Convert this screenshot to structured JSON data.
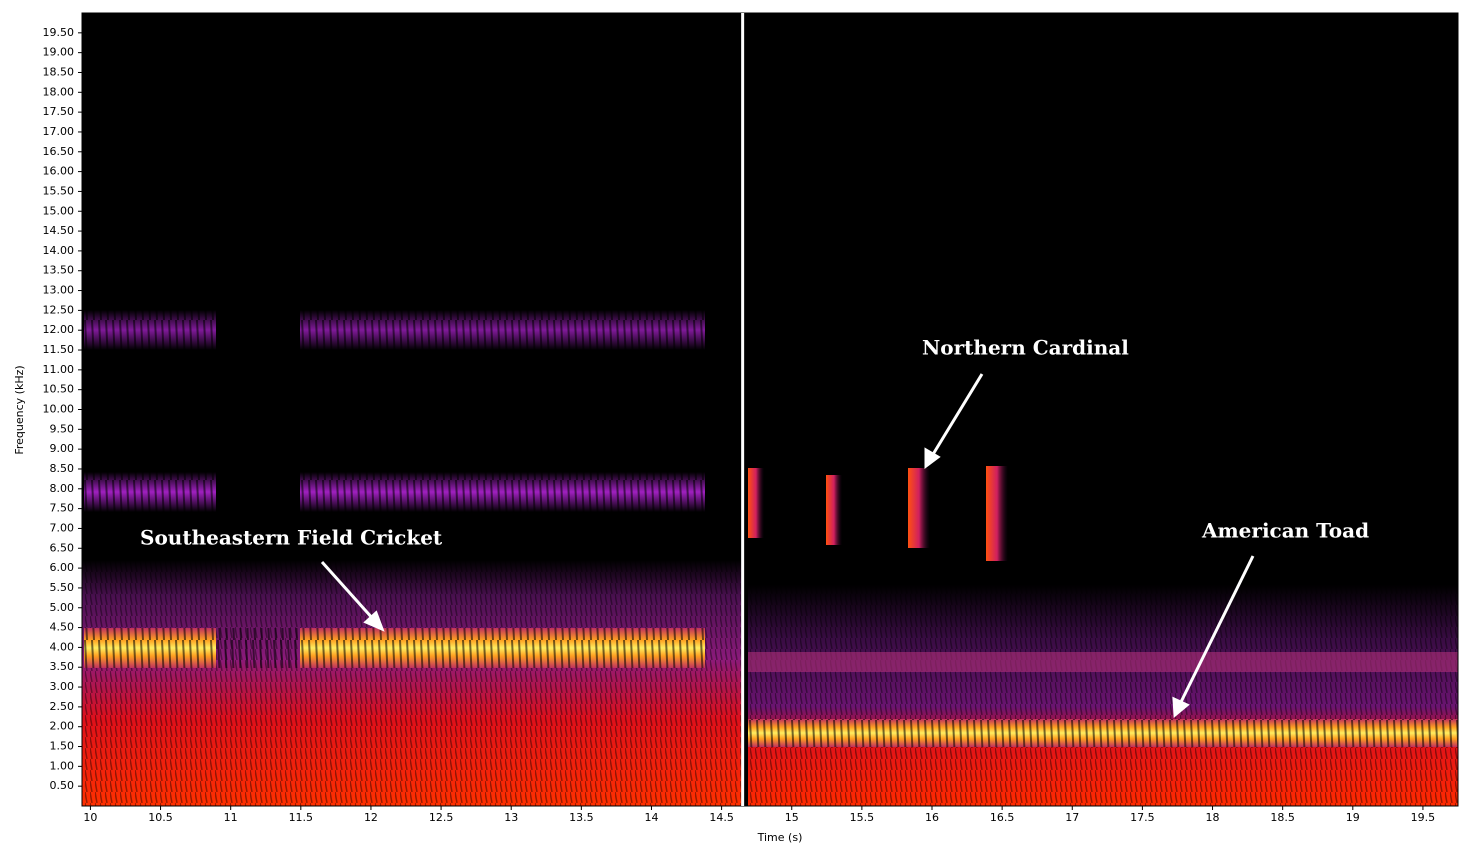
{
  "chart_data": {
    "type": "spectrogram",
    "x_label": "Time (s)",
    "y_label": "Frequency (kHz)",
    "xlim": [
      9.94,
      19.75
    ],
    "ylim": [
      0,
      20
    ],
    "xticks": [
      10,
      10.5,
      11,
      11.5,
      12,
      12.5,
      13,
      13.5,
      14,
      14.5,
      15,
      15.5,
      16,
      16.5,
      17,
      17.5,
      18,
      18.5,
      19,
      19.5
    ],
    "yticks": [
      {
        "value": 0.5,
        "label": "0.50"
      },
      {
        "value": 1,
        "label": "1.00"
      },
      {
        "value": 1.5,
        "label": "1.50"
      },
      {
        "value": 2,
        "label": "2.00"
      },
      {
        "value": 2.5,
        "label": "2.50"
      },
      {
        "value": 3,
        "label": "3.00"
      },
      {
        "value": 3.5,
        "label": "3.50"
      },
      {
        "value": 4,
        "label": "4.00"
      },
      {
        "value": 4.5,
        "label": "4.50"
      },
      {
        "value": 5,
        "label": "5.00"
      },
      {
        "value": 5.5,
        "label": "5.50"
      },
      {
        "value": 6,
        "label": "6.00"
      },
      {
        "value": 6.5,
        "label": "6.50"
      },
      {
        "value": 7,
        "label": "7.00"
      },
      {
        "value": 7.5,
        "label": "7.50"
      },
      {
        "value": 8,
        "label": "8.00"
      },
      {
        "value": 8.5,
        "label": "8.50"
      },
      {
        "value": 9,
        "label": "9.00"
      },
      {
        "value": 9.5,
        "label": "9.50"
      },
      {
        "value": 10,
        "label": "10.00"
      },
      {
        "value": 10.5,
        "label": "10.50"
      },
      {
        "value": 11,
        "label": "11.00"
      },
      {
        "value": 11.5,
        "label": "11.50"
      },
      {
        "value": 12,
        "label": "12.00"
      },
      {
        "value": 12.5,
        "label": "12.50"
      },
      {
        "value": 13,
        "label": "13.00"
      },
      {
        "value": 13.5,
        "label": "13.50"
      },
      {
        "value": 14,
        "label": "14.00"
      },
      {
        "value": 14.5,
        "label": "14.50"
      },
      {
        "value": 15,
        "label": "15.00"
      },
      {
        "value": 15.5,
        "label": "15.50"
      },
      {
        "value": 16,
        "label": "16.00"
      },
      {
        "value": 16.5,
        "label": "16.50"
      },
      {
        "value": 17,
        "label": "17.00"
      },
      {
        "value": 17.5,
        "label": "17.50"
      },
      {
        "value": 18,
        "label": "18.00"
      },
      {
        "value": 18.5,
        "label": "18.50"
      },
      {
        "value": 19,
        "label": "19.00"
      },
      {
        "value": 19.5,
        "label": "19.50"
      }
    ],
    "marker_x": 14.65,
    "marker_color": "#ffffff",
    "annotations": [
      "Southeastern Field Cricket",
      "Northern Cardinal",
      "American Toad"
    ]
  }
}
